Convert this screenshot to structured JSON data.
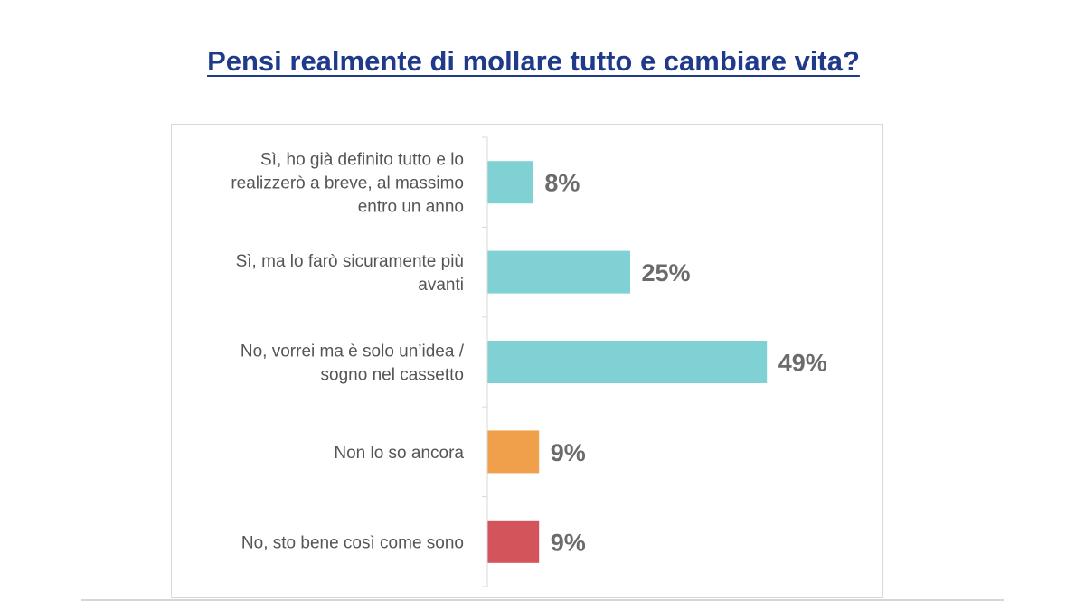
{
  "title": "Pensi realmente di mollare tutto e cambiare vita?",
  "chart_data": {
    "type": "bar",
    "orientation": "horizontal",
    "title": "Pensi realmente di mollare tutto e cambiare vita?",
    "xlabel": "",
    "ylabel": "",
    "xlim": [
      0,
      49
    ],
    "grid": false,
    "legend": "none",
    "categories": [
      [
        "Sì, ho già definito tutto e lo",
        "realizzerò a breve, al massimo",
        "entro un anno"
      ],
      [
        "Sì, ma lo farò sicuramente più",
        "avanti"
      ],
      [
        "No, vorrei ma è solo un’idea  /",
        "sogno nel cassetto"
      ],
      [
        "Non lo so ancora"
      ],
      [
        "No, sto bene così come sono"
      ]
    ],
    "values": [
      8,
      25,
      49,
      9,
      9
    ],
    "value_labels": [
      "8%",
      "25%",
      "49%",
      "9%",
      "9%"
    ],
    "colors": [
      "#7fd1d3",
      "#7fd1d3",
      "#7fd1d3",
      "#f0a04b",
      "#d4545c"
    ],
    "label_color": "#555555",
    "value_label_color": "#6b6b6b",
    "axis_color": "#d9d9d9"
  }
}
